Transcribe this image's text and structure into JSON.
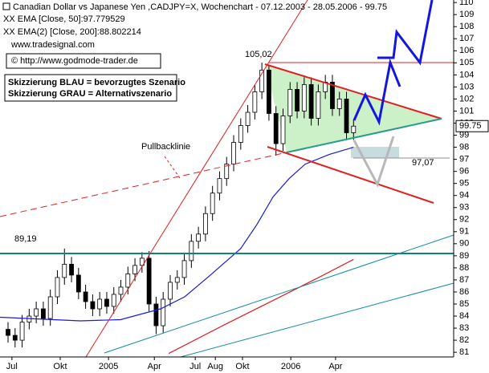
{
  "chart_data": {
    "type": "candlestick",
    "title": "Canadian Dollar vs Japanese Yen ,CADJPY=X, Wochenchart - 07.12.2003 - 28.05.2006 - 99.75",
    "source": "www.tradesignal.com",
    "annotations": [
      "© http://www.godmode-trader.de",
      "Skizzierung BLAU = bevorzugtes Szenario",
      "Skizzierung GRAU = Alternativszenario",
      "Pullbacklinie",
      "105,02",
      "97,07",
      "89,19"
    ],
    "last_price": 99.75,
    "up_color": "#ffffff",
    "down_color": "#000000",
    "x": [
      0,
      2,
      4,
      6,
      8,
      10,
      12,
      14,
      16,
      18,
      20,
      22,
      24,
      26,
      28,
      30,
      32,
      34,
      36,
      38,
      40,
      42,
      44,
      46,
      48,
      50,
      52,
      54,
      56,
      58,
      60,
      62,
      64,
      66,
      68,
      70,
      72,
      74,
      76,
      78,
      80,
      82,
      84,
      86,
      88,
      90,
      92,
      94,
      96,
      98
    ],
    "open": [
      82.9,
      82.4,
      82.0,
      83.5,
      84.0,
      84.6,
      83.8,
      85.6,
      87.2,
      88.3,
      87.4,
      86.0,
      85.2,
      84.6,
      85.4,
      84.8,
      85.8,
      86.4,
      87.5,
      88.2,
      88.8,
      85.0,
      83.2,
      85.4,
      86.8,
      87.2,
      88.6,
      90.2,
      90.8,
      92.5,
      94.2,
      95.4,
      96.6,
      98.4,
      99.8,
      100.9,
      102.6,
      104.4,
      100.8,
      98.3,
      100.6,
      102.8,
      101.0,
      103.2,
      100.4,
      102.6,
      103.4,
      101.2,
      102.0,
      99.2
    ],
    "high": [
      83.5,
      83.0,
      84.1,
      84.6,
      85.2,
      85.2,
      86.2,
      87.8,
      89.6,
      88.9,
      88.0,
      86.6,
      85.8,
      86.0,
      86.0,
      86.4,
      87.0,
      88.1,
      88.8,
      89.3,
      89.4,
      85.6,
      86.0,
      87.4,
      87.8,
      89.2,
      90.8,
      91.4,
      93.1,
      94.8,
      96.0,
      97.2,
      99.0,
      100.4,
      101.5,
      103.2,
      105.02,
      104.8,
      101.4,
      101.2,
      103.4,
      103.4,
      103.8,
      103.8,
      103.2,
      104.0,
      104.0,
      102.6,
      102.6,
      100.3
    ],
    "low": [
      81.8,
      81.4,
      81.4,
      82.9,
      83.4,
      83.2,
      83.2,
      85.0,
      86.6,
      86.8,
      85.4,
      84.6,
      84.0,
      84.0,
      84.2,
      84.2,
      85.2,
      85.8,
      86.9,
      87.6,
      84.4,
      82.5,
      82.6,
      84.8,
      86.2,
      86.6,
      88.0,
      89.6,
      90.2,
      91.9,
      93.6,
      94.8,
      96.0,
      97.8,
      99.2,
      100.3,
      102.0,
      100.2,
      97.3,
      97.7,
      100.0,
      100.4,
      100.4,
      99.8,
      99.8,
      102.0,
      100.6,
      100.6,
      98.6,
      98.6
    ],
    "close": [
      82.4,
      82.0,
      83.5,
      84.0,
      84.6,
      83.8,
      85.6,
      87.2,
      88.3,
      87.4,
      86.0,
      85.2,
      84.6,
      85.4,
      84.8,
      85.8,
      86.4,
      87.5,
      88.2,
      88.8,
      85.0,
      83.2,
      85.4,
      86.8,
      87.2,
      88.6,
      90.2,
      90.8,
      92.5,
      94.2,
      95.4,
      96.6,
      98.4,
      99.8,
      100.9,
      102.6,
      104.4,
      100.8,
      98.3,
      100.6,
      102.8,
      101.0,
      103.2,
      100.4,
      102.6,
      103.4,
      101.2,
      102.0,
      99.2,
      99.75
    ],
    "series": [
      {
        "name": "XX EMA [Close, 50]:97.779529",
        "color": "#1a1adf",
        "x": [
          -2.3,
          20.5,
          31.9,
          43.3,
          50.1,
          57,
          66,
          70.6,
          75.2,
          79.7,
          84.3,
          91.1,
          98
        ],
        "values": [
          83.9,
          83.6,
          83.7,
          84.6,
          85.6,
          87.3,
          89.6,
          91.6,
          93.9,
          95.4,
          96.6,
          97.4,
          98.0
        ]
      },
      {
        "name": "XX EMA(2) [Close, 200]:88.802214",
        "color": "#e01010",
        "x": [
          45.6,
          61.5,
          75.2,
          88.8,
          98
        ],
        "values": [
          80.9,
          83.3,
          85.3,
          87.3,
          88.7
        ]
      }
    ],
    "xlim": [
      -2.28,
      126.4
    ],
    "xticks": [
      {
        "value": 1.1,
        "label": "Jul"
      },
      {
        "value": 14.8,
        "label": "Okt"
      },
      {
        "value": 28.5,
        "label": "2005"
      },
      {
        "value": 41.5,
        "label": "Apr"
      },
      {
        "value": 53.1,
        "label": "Jul"
      },
      {
        "value": 58.8,
        "label": "Aug"
      },
      {
        "value": 66.5,
        "label": "Okt"
      },
      {
        "value": 80.2,
        "label": "2006"
      },
      {
        "value": 92.9,
        "label": "Apr"
      }
    ],
    "ylim": [
      80.61,
      110.21
    ],
    "yticks": [
      81,
      82,
      83,
      84,
      85,
      86,
      87,
      88,
      89,
      90,
      91,
      92,
      93,
      94,
      95,
      96,
      97,
      98,
      99,
      100,
      101,
      102,
      103,
      104,
      105,
      106,
      107,
      108,
      109,
      110
    ]
  }
}
